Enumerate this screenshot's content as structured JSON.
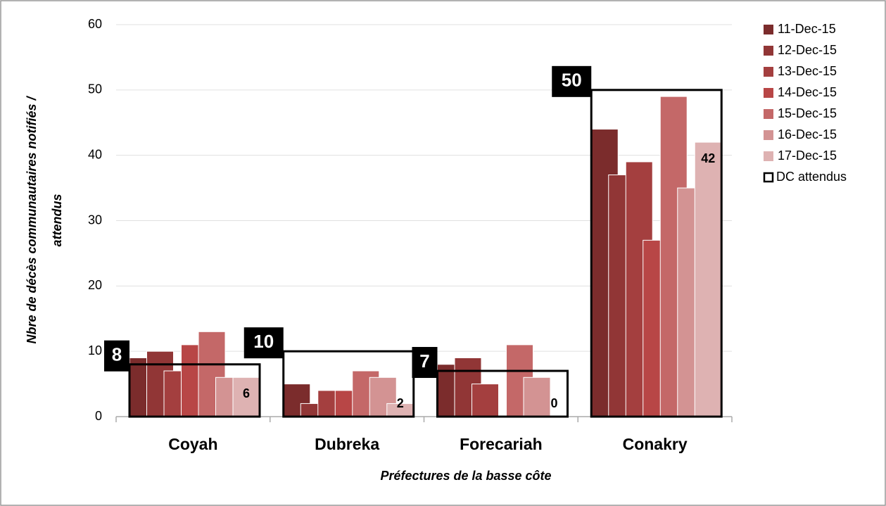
{
  "chart_data": {
    "type": "bar",
    "y_label": [
      "Nbre de décès communautaires notifiés /",
      "attendus"
    ],
    "x_label": "Préfectures de la basse côte",
    "categories": [
      "Coyah",
      "Dubreka",
      "Forecariah",
      "Conakry"
    ],
    "series": [
      {
        "name": "11-Dec-15",
        "color": "#7b2c2c",
        "values": [
          9,
          5,
          8,
          44
        ]
      },
      {
        "name": "12-Dec-15",
        "color": "#913636",
        "values": [
          10,
          2,
          9,
          37
        ]
      },
      {
        "name": "13-Dec-15",
        "color": "#a43f3f",
        "values": [
          7,
          4,
          5,
          39
        ]
      },
      {
        "name": "14-Dec-15",
        "color": "#b84646",
        "values": [
          11,
          4,
          0,
          27
        ]
      },
      {
        "name": "15-Dec-15",
        "color": "#c46868",
        "values": [
          13,
          7,
          11,
          49
        ]
      },
      {
        "name": "16-Dec-15",
        "color": "#d39393",
        "values": [
          6,
          6,
          6,
          35
        ]
      },
      {
        "name": "17-Dec-15",
        "color": "#deb2b2",
        "values": [
          6,
          2,
          0,
          42
        ]
      }
    ],
    "expected": {
      "name": "DC attendus",
      "color": "#000000",
      "values": [
        8,
        10,
        7,
        50
      ]
    },
    "labeled_series": 6,
    "ylim": [
      0,
      60
    ],
    "yticks": [
      0,
      10,
      20,
      30,
      40,
      50,
      60
    ],
    "grid": true,
    "legend": "right"
  }
}
